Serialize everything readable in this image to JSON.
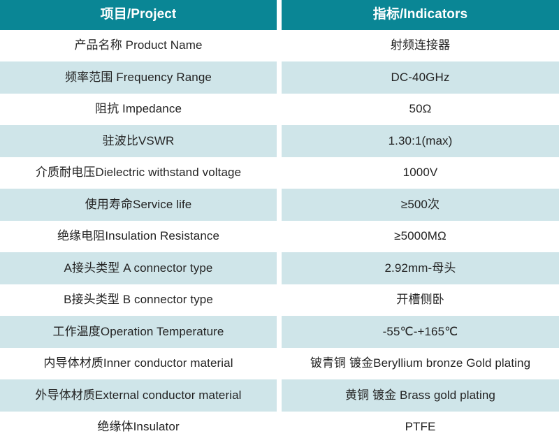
{
  "table": {
    "title": "RF connector specification table",
    "colors": {
      "header_background": "#0a8695",
      "header_text": "#ffffff",
      "shaded_row_background": "#cfe5e9",
      "plain_row_background": "#ffffff",
      "body_text": "#232323"
    },
    "header": {
      "project": "项目/Project",
      "indicators": "指标/Indicators"
    },
    "rows": [
      {
        "project": "产品名称 Product Name",
        "indicator": "射频连接器"
      },
      {
        "project": "频率范围 Frequency Range",
        "indicator": "DC-40GHz"
      },
      {
        "project": "阻抗 Impedance",
        "indicator": "50Ω"
      },
      {
        "project": "驻波比VSWR",
        "indicator": "1.30:1(max)"
      },
      {
        "project": "介质耐电压Dielectric withstand voltage",
        "indicator": "1000V"
      },
      {
        "project": "使用寿命Service life",
        "indicator": "≥500次"
      },
      {
        "project": "绝缘电阻Insulation Resistance",
        "indicator": "≥5000MΩ"
      },
      {
        "project": "A接头类型 A connector type",
        "indicator": "2.92mm-母头"
      },
      {
        "project": "B接头类型 B connector type",
        "indicator": "开槽侧卧"
      },
      {
        "project": "工作温度Operation Temperature",
        "indicator": "-55℃-+165℃"
      },
      {
        "project": "内导体材质Inner conductor material",
        "indicator": "铍青铜 镀金Beryllium bronze Gold plating"
      },
      {
        "project": "外导体材质External conductor material",
        "indicator": "黄铜 镀金 Brass gold plating"
      },
      {
        "project": "绝缘体Insulator",
        "indicator": "PTFE"
      }
    ]
  }
}
